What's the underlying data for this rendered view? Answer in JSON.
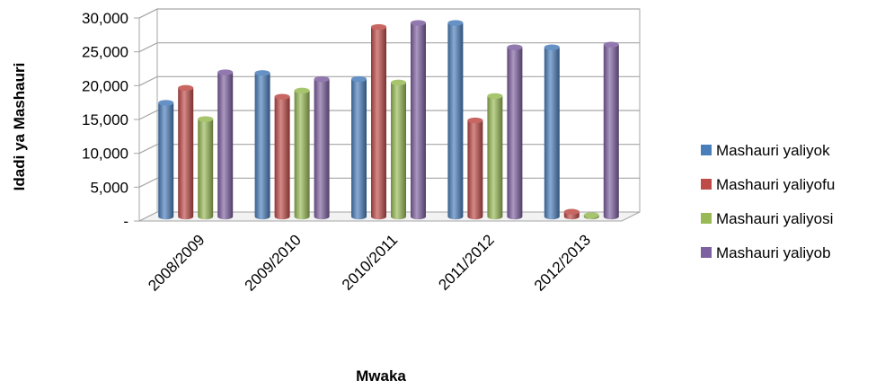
{
  "chart_data": {
    "type": "bar",
    "title": "",
    "xlabel": "Mwaka",
    "ylabel": "Idadi ya Mashauri",
    "categories": [
      "2008/2009",
      "2009/2010",
      "2010/2011",
      "2011/2012",
      "2012/2013"
    ],
    "y_ticks": [
      "-",
      "5,000",
      "10,000",
      "15,000",
      "20,000",
      "25,000",
      "30,000"
    ],
    "ylim": [
      0,
      30000
    ],
    "grid": true,
    "legend_position": "right",
    "series": [
      {
        "name": "Mashauri yaliyok",
        "color": "#4a7ebb",
        "values": [
          16800,
          21200,
          20300,
          28600,
          25000
        ]
      },
      {
        "name": "Mashauri yaliyofu",
        "color": "#be4b48",
        "values": [
          19000,
          17700,
          28000,
          14200,
          700
        ]
      },
      {
        "name": "Mashauri yaliyosi",
        "color": "#98b954",
        "values": [
          14400,
          18600,
          19800,
          17800,
          200
        ]
      },
      {
        "name": "Mashauri yaliyob",
        "color": "#7d60a0",
        "values": [
          21300,
          20300,
          28600,
          25000,
          25400
        ]
      }
    ]
  }
}
